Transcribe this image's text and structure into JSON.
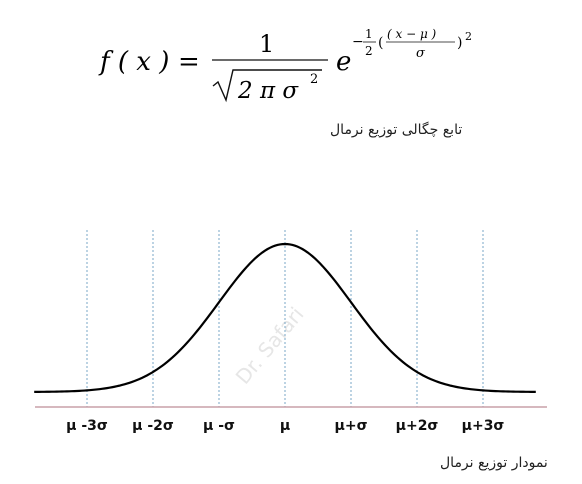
{
  "formula": {
    "lhs": "f ( x )",
    "equals": "=",
    "numerator": "1",
    "radicand": "2 π σ",
    "radicand_exp": "2",
    "base": "e",
    "exp_sign": "−",
    "exp_frac_num": "1",
    "exp_frac_den": "2",
    "exp_paren_open": "(",
    "exp_inner_num": "( x − μ )",
    "exp_inner_den": "σ",
    "exp_paren_close": ")",
    "exp_outer_pow": "2"
  },
  "captions": {
    "density": "تابع چگالی توزیع نرمال",
    "graph": "نمودار توزیع نرمال"
  },
  "watermark": "Dr. Safari",
  "chart_data": {
    "type": "line",
    "title": "",
    "xlabel": "",
    "ylabel": "",
    "curve": "normal-density",
    "mean": 0,
    "sd": 1,
    "xlim": [
      -3.8,
      3.8
    ],
    "x_ticks": [
      -3,
      -2,
      -1,
      0,
      1,
      2,
      3
    ],
    "tick_labels": [
      "μ -3σ",
      "μ -2σ",
      "μ -σ",
      "μ",
      "μ+σ",
      "μ+2σ",
      "μ+3σ"
    ],
    "gridlines": "vertical-dotted",
    "colors": {
      "curve": "#000000",
      "grid": "#7aa7c7",
      "axis": "#c9a0a8"
    }
  }
}
